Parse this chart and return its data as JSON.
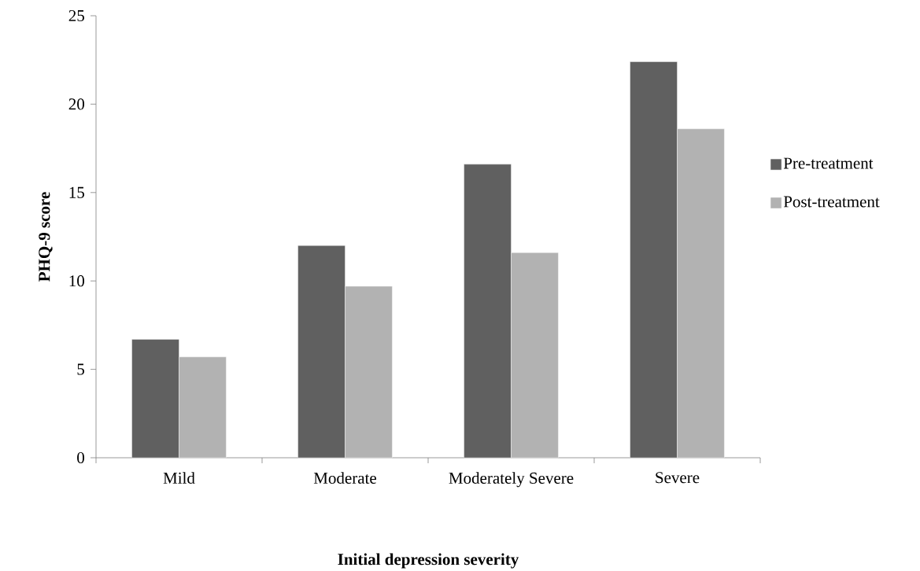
{
  "chart_data": {
    "type": "bar",
    "xlabel": "Initial depression severity",
    "ylabel": "PHQ-9 score",
    "categories": [
      "Mild",
      "Moderate",
      "Moderately Severe",
      "Severe"
    ],
    "series": [
      {
        "name": "Pre-treatment",
        "color": "#606060",
        "values": [
          6.7,
          12.0,
          16.6,
          22.4
        ]
      },
      {
        "name": "Post-treatment",
        "color": "#b2b2b2",
        "values": [
          5.7,
          9.7,
          11.6,
          18.6
        ]
      }
    ],
    "ylim": [
      0,
      25
    ],
    "yticks": [
      0,
      5,
      10,
      15,
      20,
      25
    ],
    "grid": false,
    "legend": "right"
  }
}
